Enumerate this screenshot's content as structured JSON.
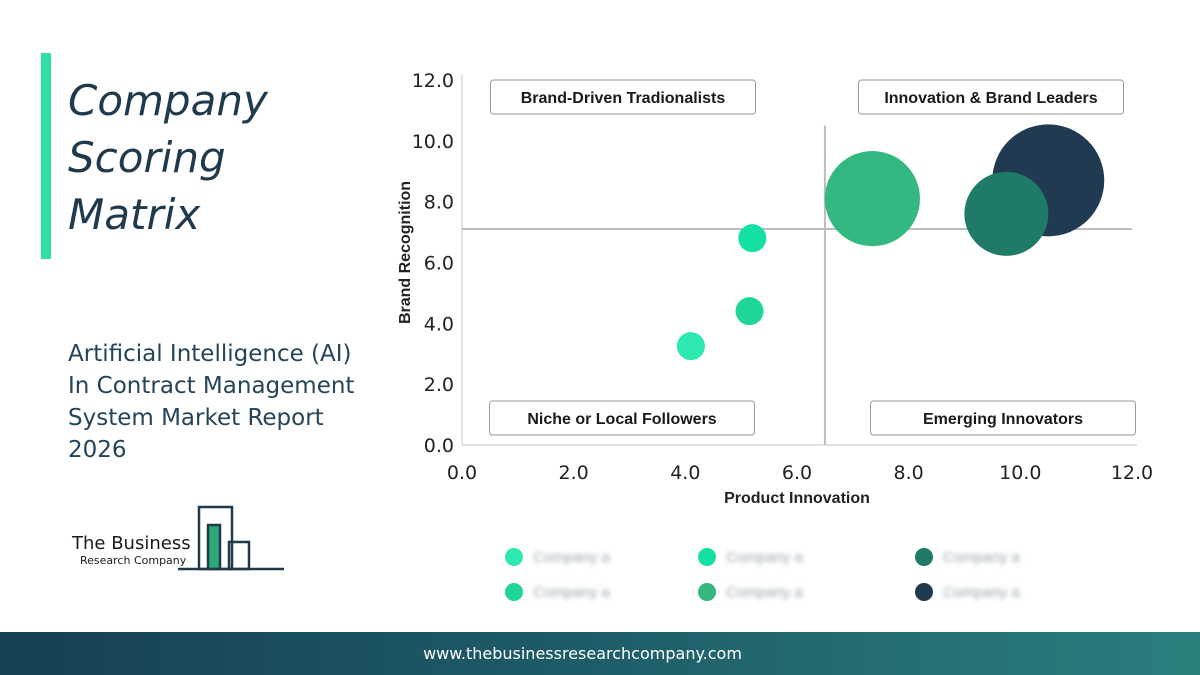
{
  "title": [
    "Company",
    "Scoring",
    "Matrix"
  ],
  "subtitle": "Artificial Intelligence (AI) In Contract Management System Market Report 2026",
  "logo": {
    "line1": "The Business",
    "line2": "Research Company"
  },
  "footer": {
    "url": "www.thebusinessresearchcompany.com"
  },
  "colors": {
    "accent": "#2fe0a6",
    "text": "#1f3a4d",
    "footer": "#1d5a66"
  },
  "chart_data": {
    "type": "scatter",
    "xlabel": "Product Innovation",
    "ylabel": "Brand Recognition",
    "xlim": [
      0,
      12
    ],
    "ylim": [
      0,
      12
    ],
    "x_ticks": [
      "0.0",
      "2.0",
      "4.0",
      "6.0",
      "8.0",
      "10.0",
      "12.0"
    ],
    "y_ticks": [
      "0.0",
      "2.0",
      "4.0",
      "6.0",
      "8.0",
      "10.0",
      "12.0"
    ],
    "divider_x": 6.5,
    "divider_y": 7.1,
    "quadrants": {
      "top_left": "Brand-Driven Tradionalists",
      "top_right": "Innovation & Brand Leaders",
      "bottom_left": "Niche or Local Followers",
      "bottom_right": "Emerging Innovators"
    },
    "points": [
      {
        "x": 4.1,
        "y": 3.25,
        "size": 1.0,
        "color": "#2de8b0"
      },
      {
        "x": 5.15,
        "y": 4.4,
        "size": 1.0,
        "color": "#1fd69a"
      },
      {
        "x": 5.2,
        "y": 6.8,
        "size": 1.0,
        "color": "#14e0a4"
      },
      {
        "x": 10.5,
        "y": 8.7,
        "size": 4.0,
        "color": "#203a52"
      },
      {
        "x": 7.35,
        "y": 8.1,
        "size": 3.4,
        "color": "#33b881"
      },
      {
        "x": 9.75,
        "y": 7.6,
        "size": 3.0,
        "color": "#1f7a68"
      }
    ],
    "legend": [
      {
        "label": "Company a",
        "color": "#2de8b0"
      },
      {
        "label": "Company a",
        "color": "#14e0a4"
      },
      {
        "label": "Company a",
        "color": "#1f7a68"
      },
      {
        "label": "Company a",
        "color": "#1fd69a"
      },
      {
        "label": "Company a",
        "color": "#33b881"
      },
      {
        "label": "Company a",
        "color": "#203a52"
      }
    ]
  }
}
